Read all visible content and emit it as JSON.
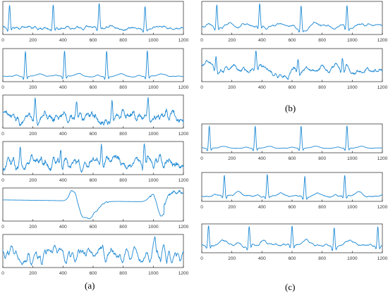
{
  "captions": {
    "a": "(a)",
    "b": "(b)",
    "c": "(c)"
  },
  "colors": {
    "signal": "#1f8ad4",
    "axis": "#222222",
    "tick_text": "#333333"
  },
  "chart_data": [
    {
      "type": "line",
      "group": "a",
      "xlim": [
        0,
        1200
      ],
      "xticks": [
        0,
        200,
        400,
        600,
        800,
        1000,
        1200
      ],
      "waveform": "ecg",
      "peaks": [
        45,
        335,
        640,
        945
      ],
      "peak_amp": 0.95,
      "noise": 0.06,
      "baseline": 0.15,
      "twave": 0.12,
      "wander": 0.04,
      "seed": 1
    },
    {
      "type": "line",
      "group": "a",
      "xlim": [
        0,
        1200
      ],
      "xticks": [
        0,
        200,
        400,
        600,
        800,
        1000,
        1200
      ],
      "waveform": "ecg",
      "peaks": [
        150,
        410,
        690,
        960
      ],
      "peak_amp": 0.95,
      "noise": 0.012,
      "baseline": 0.08,
      "twave": 0.1,
      "wander": 0.01,
      "seed": 2
    },
    {
      "type": "line",
      "group": "a",
      "xlim": [
        0,
        1200
      ],
      "xticks": [
        0,
        200,
        400,
        600,
        800,
        1000,
        1200
      ],
      "waveform": "ecg",
      "peaks": [
        215,
        490,
        725,
        965
      ],
      "peak_amp": 0.75,
      "noise": 0.22,
      "baseline": 0.35,
      "twave": 0.22,
      "wander": 0.1,
      "seed": 3
    },
    {
      "type": "line",
      "group": "a",
      "xlim": [
        0,
        1200
      ],
      "xticks": [
        0,
        200,
        400,
        600,
        800,
        1000,
        1200
      ],
      "waveform": "ecg",
      "peaks": [
        115,
        385,
        655,
        940
      ],
      "peak_amp": 0.7,
      "noise": 0.2,
      "baseline": 0.4,
      "twave": 0.15,
      "wander": 0.06,
      "seed": 4
    },
    {
      "type": "line",
      "group": "a",
      "xlim": [
        0,
        1200
      ],
      "xticks": [
        0,
        200,
        400,
        600,
        800,
        1000,
        1200
      ],
      "waveform": "artifact",
      "seed": 5
    },
    {
      "type": "line",
      "group": "a",
      "xlim": [
        0,
        1200
      ],
      "xticks": [
        0,
        200,
        400,
        600,
        800,
        1000,
        1200
      ],
      "waveform": "noise",
      "noise": 0.25,
      "baseline": 0.35,
      "spike_at": 1010,
      "seed": 6
    },
    {
      "type": "line",
      "group": "b",
      "xlim": [
        0,
        1200
      ],
      "xticks": [
        0,
        200,
        400,
        600,
        800,
        1000,
        1200
      ],
      "waveform": "ecg",
      "peaks": [
        100,
        385,
        660,
        965
      ],
      "peak_amp": 0.85,
      "noise": 0.04,
      "baseline": 0.35,
      "twave": 0.06,
      "wander": 0.07,
      "seed": 7
    },
    {
      "type": "line",
      "group": "b",
      "xlim": [
        0,
        1200
      ],
      "xticks": [
        0,
        200,
        400,
        600,
        800,
        1000,
        1200
      ],
      "waveform": "ecg",
      "peaks": [
        95,
        360,
        640,
        935
      ],
      "peak_amp": 0.5,
      "noise": 0.09,
      "baseline": 0.45,
      "twave": 0.05,
      "wander": 0.15,
      "seed": 8
    },
    {
      "type": "line",
      "group": "c",
      "xlim": [
        0,
        1200
      ],
      "xticks": [
        0,
        200,
        400,
        600,
        800,
        1000,
        1200
      ],
      "waveform": "ecg",
      "peaks": [
        50,
        355,
        660,
        965
      ],
      "peak_amp": 0.9,
      "noise": 0.006,
      "baseline": 0.12,
      "twave": 0.08,
      "wander": 0.005,
      "seed": 9
    },
    {
      "type": "line",
      "group": "c",
      "xlim": [
        0,
        1200
      ],
      "xticks": [
        0,
        200,
        400,
        600,
        800,
        1000,
        1200
      ],
      "waveform": "ecg",
      "peaks": [
        150,
        435,
        685,
        950
      ],
      "peak_amp": 0.8,
      "noise": 0.03,
      "baseline": 0.18,
      "twave": 0.14,
      "wander": 0.02,
      "seed": 10
    },
    {
      "type": "line",
      "group": "c",
      "xlim": [
        0,
        1200
      ],
      "xticks": [
        0,
        200,
        400,
        600,
        800,
        1000,
        1200
      ],
      "waveform": "ecg",
      "peaks": [
        45,
        315,
        600,
        880,
        1170
      ],
      "peak_amp": 0.6,
      "noise": 0.03,
      "baseline": 0.18,
      "twave": 0.15,
      "wander": 0.02,
      "seed": 11
    }
  ]
}
